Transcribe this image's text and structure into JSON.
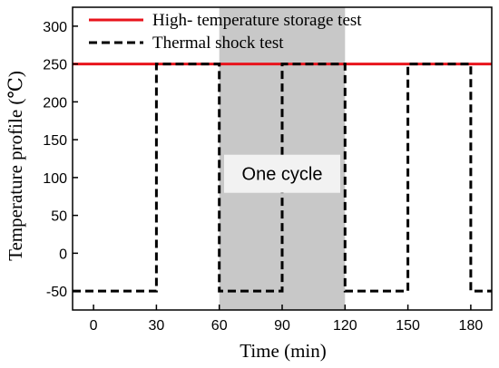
{
  "chart_data": {
    "type": "line",
    "xlabel": "Time (min)",
    "ylabel": "Temperature profile (℃)",
    "xlim": [
      -10,
      190
    ],
    "ylim": [
      -75,
      325
    ],
    "xticks": [
      0,
      30,
      60,
      90,
      120,
      150,
      180
    ],
    "yticks": [
      -50,
      0,
      50,
      100,
      150,
      200,
      250,
      300
    ],
    "grid": false,
    "legend_position": "top-left",
    "series": [
      {
        "name": "High- temperature storage test",
        "color": "#e8141c",
        "line_style": "solid",
        "x": [
          -10,
          190
        ],
        "y": [
          250,
          250
        ]
      },
      {
        "name": "Thermal shock test",
        "color": "#000000",
        "line_style": "dashed",
        "x": [
          -10,
          30,
          30,
          60,
          60,
          90,
          90,
          120,
          120,
          150,
          150,
          180,
          180,
          190
        ],
        "y": [
          -50,
          -50,
          250,
          250,
          -50,
          -50,
          250,
          250,
          -50,
          -50,
          250,
          250,
          -50,
          -50
        ]
      }
    ],
    "annotations": [
      {
        "label": "One cycle",
        "x_range": [
          60,
          120
        ],
        "shade_color": "#c8c8c8",
        "label_x": 90,
        "label_y": 105
      }
    ]
  }
}
